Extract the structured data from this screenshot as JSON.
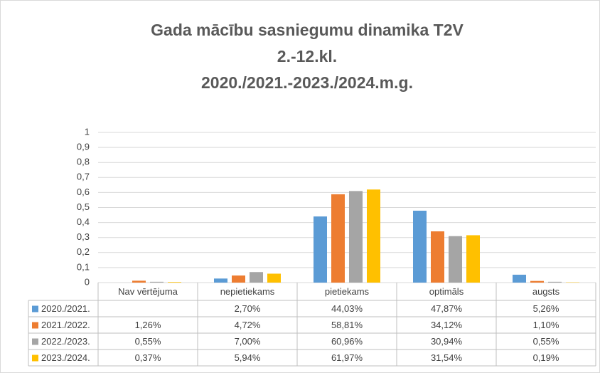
{
  "chart_data": {
    "type": "bar",
    "title": [
      "Gada mācību sasniegumu dinamika T2V",
      "2.-12.kl.",
      "2020./2021.-2023./2024.m.g."
    ],
    "categories": [
      "Nav vērtējuma",
      "nepietiekams",
      "pietiekams",
      "optimāls",
      "augsts"
    ],
    "series": [
      {
        "name": "2020./2021.",
        "color": "#5b9bd5",
        "values": [
          null,
          0.027,
          0.4403,
          0.4787,
          0.0526
        ],
        "value_labels": [
          null,
          "2,70%",
          "44,03%",
          "47,87%",
          "5,26%"
        ]
      },
      {
        "name": "2021./2022.",
        "color": "#ed7d31",
        "values": [
          0.0126,
          0.0472,
          0.5881,
          0.3412,
          0.011
        ],
        "value_labels": [
          "1,26%",
          "4,72%",
          "58,81%",
          "34,12%",
          "1,10%"
        ]
      },
      {
        "name": "2022./2023.",
        "color": "#a5a5a5",
        "values": [
          0.0055,
          0.07,
          0.6096,
          0.3094,
          0.0055
        ],
        "value_labels": [
          "0,55%",
          "7,00%",
          "60,96%",
          "30,94%",
          "0,55%"
        ]
      },
      {
        "name": "2023./2024.",
        "color": "#ffc000",
        "values": [
          0.0037,
          0.0594,
          0.6197,
          0.3154,
          0.0019
        ],
        "value_labels": [
          "0,37%",
          "5,94%",
          "61,97%",
          "31,54%",
          "0,19%"
        ]
      }
    ],
    "ylim": [
      0,
      1
    ],
    "yticks": [
      0,
      {
        "value": 0.1,
        "label": "0,1"
      },
      {
        "value": 0.2,
        "label": "0,2"
      },
      {
        "value": 0.3,
        "label": "0,3"
      },
      {
        "value": 0.4,
        "label": "0,4"
      },
      {
        "value": 0.5,
        "label": "0,5"
      },
      {
        "value": 0.6,
        "label": "0,6"
      },
      {
        "value": 0.7,
        "label": "0,7"
      },
      {
        "value": 0.8,
        "label": "0,8"
      },
      {
        "value": 0.9,
        "label": "0,9"
      },
      1
    ],
    "grid": true
  }
}
